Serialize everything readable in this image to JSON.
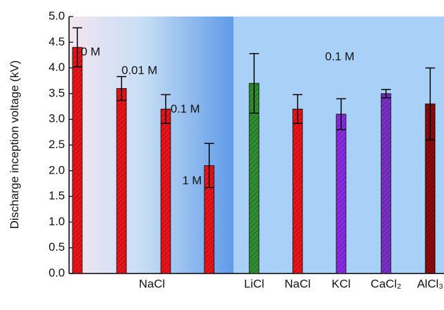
{
  "chart_data": {
    "type": "bar",
    "y_label": "Discharge inception voltage (kV)",
    "categories": [
      null,
      null,
      null,
      null,
      "LiCl",
      "NaCl",
      "KCl",
      "CaCl₂",
      "AlCl₃"
    ],
    "group_label": "NaCl",
    "values": [
      4.4,
      3.6,
      3.2,
      2.1,
      3.7,
      3.2,
      3.1,
      3.5,
      3.3
    ],
    "errors": [
      0.38,
      0.23,
      0.28,
      0.43,
      0.58,
      0.28,
      0.3,
      0.08,
      0.7
    ],
    "colors": [
      "#e8141a",
      "#e8141a",
      "#e8141a",
      "#e8141a",
      "#2f8f2f",
      "#e8141a",
      "#8a2be2",
      "#7b2fc4",
      "#8b0a0a"
    ],
    "annotations": [
      "0 M",
      "0.01 M",
      "0.1 M",
      "1 M",
      "0.1 M"
    ],
    "ylim": [
      0,
      5
    ],
    "yticks": [
      {
        "value": 0,
        "label": "0.0"
      },
      0.5,
      {
        "value": 1,
        "label": "1.0"
      },
      1.5,
      {
        "value": 2,
        "label": "2.0"
      },
      2.5,
      {
        "value": 3,
        "label": "3.0"
      },
      3.5,
      {
        "value": 4,
        "label": "4.0"
      },
      4.5,
      {
        "value": 5,
        "label": "5.0"
      }
    ]
  }
}
